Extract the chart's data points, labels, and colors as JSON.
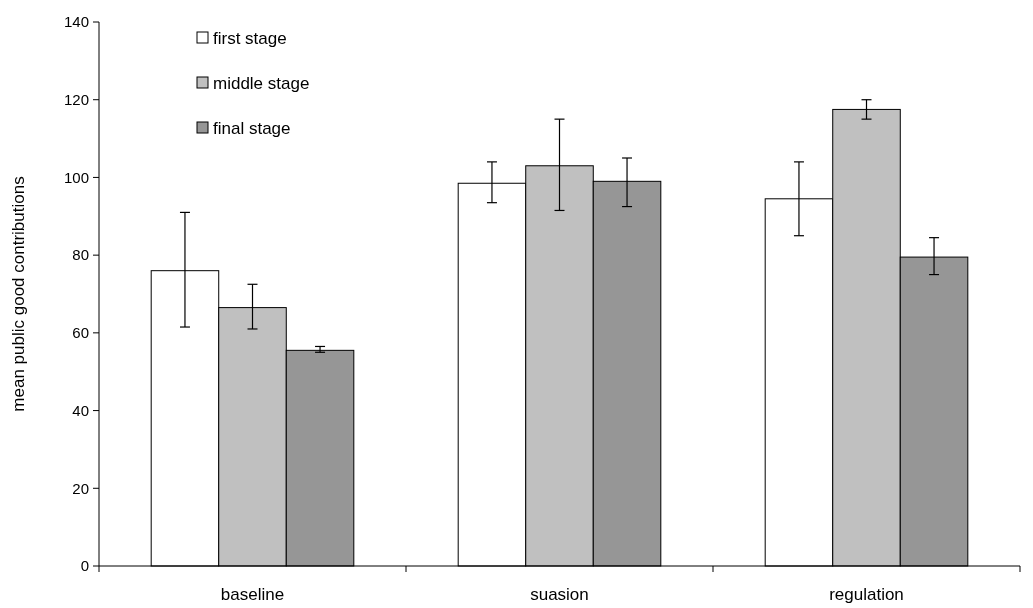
{
  "chart_data": {
    "type": "bar",
    "ylabel": "mean public good contributions",
    "categories": [
      "baseline",
      "suasion",
      "regulation"
    ],
    "series": [
      {
        "name": "first stage",
        "color": "#ffffff",
        "values": [
          76,
          98.5,
          94.5
        ],
        "errors": [
          [
            61.5,
            91
          ],
          [
            93.5,
            104
          ],
          [
            85,
            104
          ]
        ]
      },
      {
        "name": "middle stage",
        "color": "#c0c0c0",
        "values": [
          66.5,
          103,
          117.5
        ],
        "errors": [
          [
            61,
            72.5
          ],
          [
            91.5,
            115
          ],
          [
            115,
            120
          ]
        ]
      },
      {
        "name": "final stage",
        "color": "#969696",
        "values": [
          55.5,
          99,
          79.5
        ],
        "errors": [
          [
            55,
            56.5
          ],
          [
            92.5,
            105
          ],
          [
            75,
            84.5
          ]
        ]
      }
    ],
    "ylim": [
      0,
      140
    ],
    "yticks": [
      0,
      20,
      40,
      60,
      80,
      100,
      120,
      140
    ],
    "legend": "top left"
  }
}
